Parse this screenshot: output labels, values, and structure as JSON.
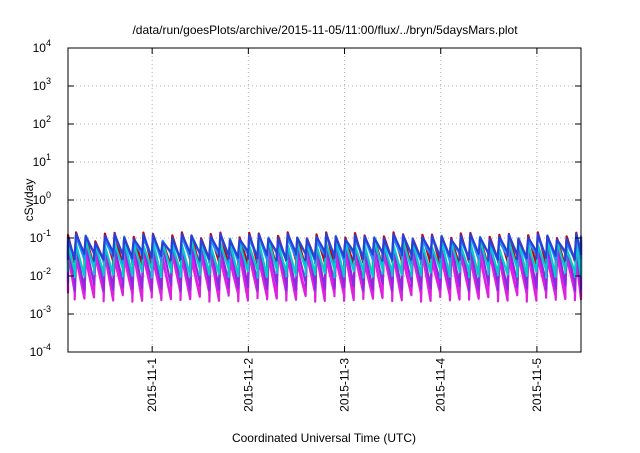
{
  "chart_data": {
    "type": "line",
    "title": "/data/run/goesPlots/archive/2015-11-05/11:00/flux/../bryn/5daysMars.plot",
    "xlabel": "Coordinated Universal Time (UTC)",
    "ylabel": "cSv/day",
    "yscale": "log",
    "ylim": [
      0.0001,
      10000
    ],
    "xlim": [
      "2015-10-31T03:00",
      "2015-11-05T11:00"
    ],
    "x_ticks": [
      "2015-11-1",
      "2015-11-2",
      "2015-11-3",
      "2015-11-4",
      "2015-11-5"
    ],
    "y_ticks": [
      {
        "base": "10",
        "exp": "-4",
        "value": 0.0001
      },
      {
        "base": "10",
        "exp": "-3",
        "value": 0.001
      },
      {
        "base": "10",
        "exp": "-2",
        "value": 0.01
      },
      {
        "base": "10",
        "exp": "-1",
        "value": 0.1
      },
      {
        "base": "10",
        "exp": "0",
        "value": 1
      },
      {
        "base": "10",
        "exp": "1",
        "value": 10
      },
      {
        "base": "10",
        "exp": "2",
        "value": 100
      },
      {
        "base": "10",
        "exp": "3",
        "value": 1000
      },
      {
        "base": "10",
        "exp": "4",
        "value": 10000
      }
    ],
    "grid": true,
    "legend": "none",
    "sawtooth_cycles_per_day": 10,
    "series": [
      {
        "color": "#cc0000",
        "peak": 0.12,
        "trough": 0.022
      },
      {
        "color": "#ff00ff",
        "peak": 0.045,
        "trough": 0.0035
      },
      {
        "color": "#dd22dd",
        "peak": 0.032,
        "trough": 0.0028
      },
      {
        "color": "#8a2be2",
        "peak": 0.065,
        "trough": 0.0055
      },
      {
        "color": "#00cccc",
        "peak": 0.075,
        "trough": 0.012
      },
      {
        "color": "#1e90ff",
        "peak": 0.1,
        "trough": 0.03
      },
      {
        "color": "#2a3fd6",
        "peak": 0.11,
        "trough": 0.034
      }
    ]
  }
}
